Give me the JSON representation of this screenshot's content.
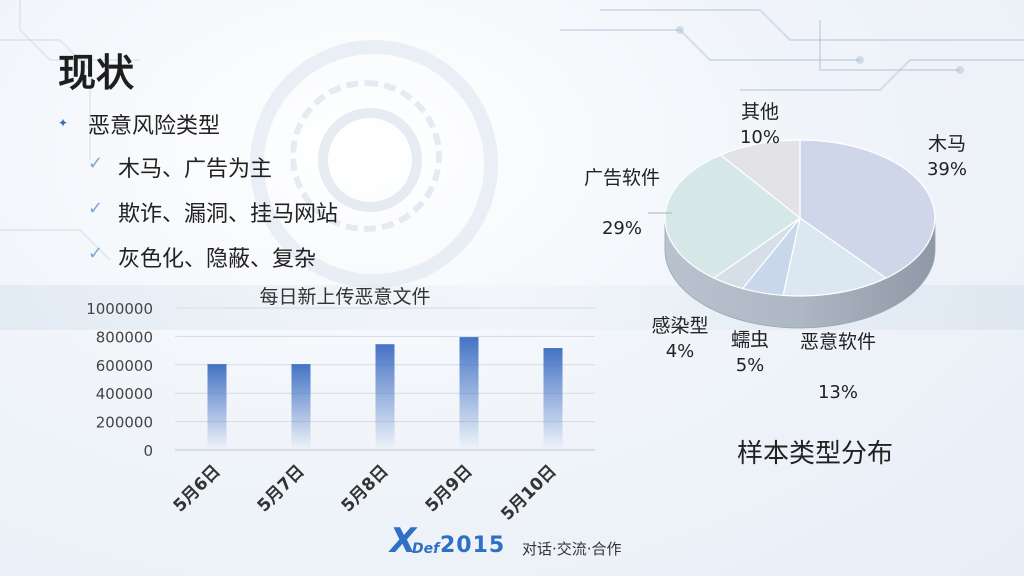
{
  "slide": {
    "title": "现状",
    "bullet": "恶意风险类型",
    "sub_bullets": [
      "木马、广告为主",
      "欺诈、漏洞、挂马网站",
      "灰色化、隐蔽、复杂"
    ]
  },
  "footer": {
    "logo_mark": "X",
    "logo_brand": "Def",
    "logo_year": "2015",
    "slogan": "对话·交流·合作"
  },
  "colors": {
    "accent": "#4472c4",
    "bullet_marker": "#3a72b5",
    "check": "#7fa6cf",
    "background": "#eef3f8"
  },
  "icons": {
    "bullet": "star-bullet-icon",
    "sub_bullet": "check-icon"
  },
  "chart_data": [
    {
      "type": "bar",
      "title": "每日新上传恶意文件",
      "categories": [
        "5月6日",
        "5月7日",
        "5月8日",
        "5月9日",
        "5月10日"
      ],
      "values": [
        605000,
        605000,
        745000,
        795000,
        718000
      ],
      "ylim": [
        0,
        1000000
      ],
      "yticks": [
        0,
        200000,
        400000,
        600000,
        800000,
        1000000
      ],
      "xlabel": "",
      "ylabel": "",
      "grid": true
    },
    {
      "type": "pie",
      "title": "样本类型分布",
      "slices": [
        {
          "label": "木马",
          "value": 39,
          "pct": "39%",
          "color": "#d0d6ea"
        },
        {
          "label": "恶意软件",
          "value": 13,
          "pct": "13%",
          "color": "#dbe8f2"
        },
        {
          "label": "蠕虫",
          "value": 5,
          "pct": "5%",
          "color": "#c9d7ea"
        },
        {
          "label": "感染型",
          "value": 4,
          "pct": "4%",
          "color": "#d6dfe7"
        },
        {
          "label": "广告软件",
          "value": 29,
          "pct": "29%",
          "color": "#d5e7e6"
        },
        {
          "label": "其他",
          "value": 10,
          "pct": "10%",
          "color": "#e3e3e6"
        }
      ]
    }
  ]
}
